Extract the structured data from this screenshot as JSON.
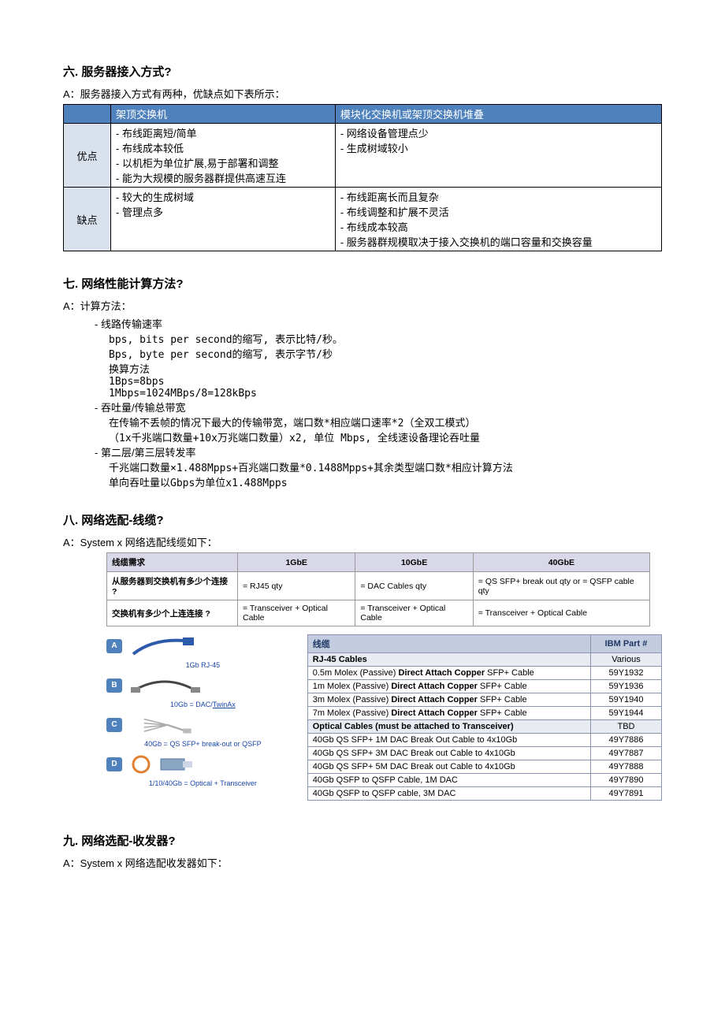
{
  "s6": {
    "title": "六. 服务器接入方式?",
    "intro": "A：服务器接入方式有两种，优缺点如下表所示：",
    "headers": [
      "架顶交换机",
      "模块化交换机或架顶交换机堆叠"
    ],
    "rowLabels": [
      "优点",
      "缺点"
    ],
    "cells": {
      "adv_left": "- 布线距离短/简单\n- 布线成本较低\n- 以机柜为单位扩展,易于部署和调整\n- 能为大规模的服务器群提供高速互连",
      "adv_right": "- 网络设备管理点少\n- 生成树域较小",
      "dis_left": "- 较大的生成树域\n- 管理点多",
      "dis_right": "- 布线距离长而且复杂\n- 布线调整和扩展不灵活\n- 布线成本较高\n- 服务器群规模取决于接入交换机的端口容量和交换容量"
    }
  },
  "s7": {
    "title": "七. 网络性能计算方法?",
    "intro": "A：计算方法：",
    "lines": [
      "- 线路传输速率",
      "  bps, bits per second的缩写, 表示比特/秒。",
      "  Bps, byte per second的缩写, 表示字节/秒",
      "  换算方法",
      "  1Bps=8bps",
      "  1Mbps=1024MBps/8=128kBps",
      "- 吞吐量/传输总带宽",
      "  在传输不丢帧的情况下最大的传输带宽，端口数*相应端口速率*2（全双工模式）",
      "  （1x千兆端口数量+10x万兆端口数量）x2, 单位 Mbps, 全线速设备理论吞吐量",
      "- 第二层/第三层转发率",
      "  千兆端口数量×1.488Mpps+百兆端口数量*0.1488Mpps+其余类型端口数*相应计算方法",
      "  单向吞吐量以Gbps为单位x1.488Mpps"
    ]
  },
  "s8": {
    "title": "八. 网络选配-线缆?",
    "intro": "A：System x 网络选配线缆如下：",
    "req": {
      "headers": [
        "线缆需求",
        "1GbE",
        "10GbE",
        "40GbE"
      ],
      "rows": [
        [
          "从服务器到交换机有多少个连接 ?",
          "= RJ45 qty",
          "= DAC Cables qty",
          "= QS SFP+ break out qty or = QSFP cable qty"
        ],
        [
          "交换机有多少个上连连接 ?",
          "= Transceiver + Optical Cable",
          "= Transceiver + Optical Cable",
          "= Transceiver + Optical Cable"
        ]
      ]
    },
    "legend": {
      "a": "1Gb RJ-45",
      "b_pre": "10Gb = DAC/",
      "b_u": "TwinAx",
      "c": "40Gb = QS SFP+ break-out or QSFP",
      "d": "1/10/40Gb = Optical + Transceiver"
    },
    "parts": {
      "headers": [
        "线缆",
        "IBM Part #"
      ],
      "rows": [
        {
          "section": true,
          "name": "RJ-45 Cables",
          "pn": "Various"
        },
        {
          "name": "0.5m Molex (Passive) <b>Direct Attach Copper</b> SFP+ Cable",
          "pn": "59Y1932"
        },
        {
          "name": "1m Molex (Passive) <b>Direct Attach Copper</b> SFP+ Cable",
          "pn": "59Y1936"
        },
        {
          "name": "3m Molex (Passive) <b>Direct Attach Copper</b> SFP+ Cable",
          "pn": "59Y1940"
        },
        {
          "name": "7m Molex (Passive) <b>Direct Attach Copper</b> SFP+ Cable",
          "pn": "59Y1944"
        },
        {
          "section": true,
          "name": "<b>Optical Cables</b> (must be attached to Transceiver)",
          "pn": "TBD"
        },
        {
          "name": "40Gb QS SFP+ 1M DAC Break Out Cable to 4x10Gb",
          "pn": "49Y7886"
        },
        {
          "name": "40Gb QS SFP+ 3M DAC Break out Cable to 4x10Gb",
          "pn": "49Y7887"
        },
        {
          "name": "40Gb QS SFP+ 5M DAC Break out Cable to 4x10Gb",
          "pn": "49Y7888"
        },
        {
          "name": "40Gb QSFP to QSFP Cable, 1M DAC",
          "pn": "49Y7890"
        },
        {
          "name": "40Gb QSFP to QSFP cable, 3M DAC",
          "pn": "49Y7891"
        }
      ]
    }
  },
  "s9": {
    "title": "九. 网络选配-收发器?",
    "intro": "A：System x 网络选配收发器如下："
  },
  "colors": {
    "header_bg": "#4f81bd",
    "rowhead_bg": "#d9e1ed",
    "req_header_bg": "#d8d8e8",
    "part_header_bg": "#c4cde0",
    "link_blue": "#1a46a8"
  }
}
